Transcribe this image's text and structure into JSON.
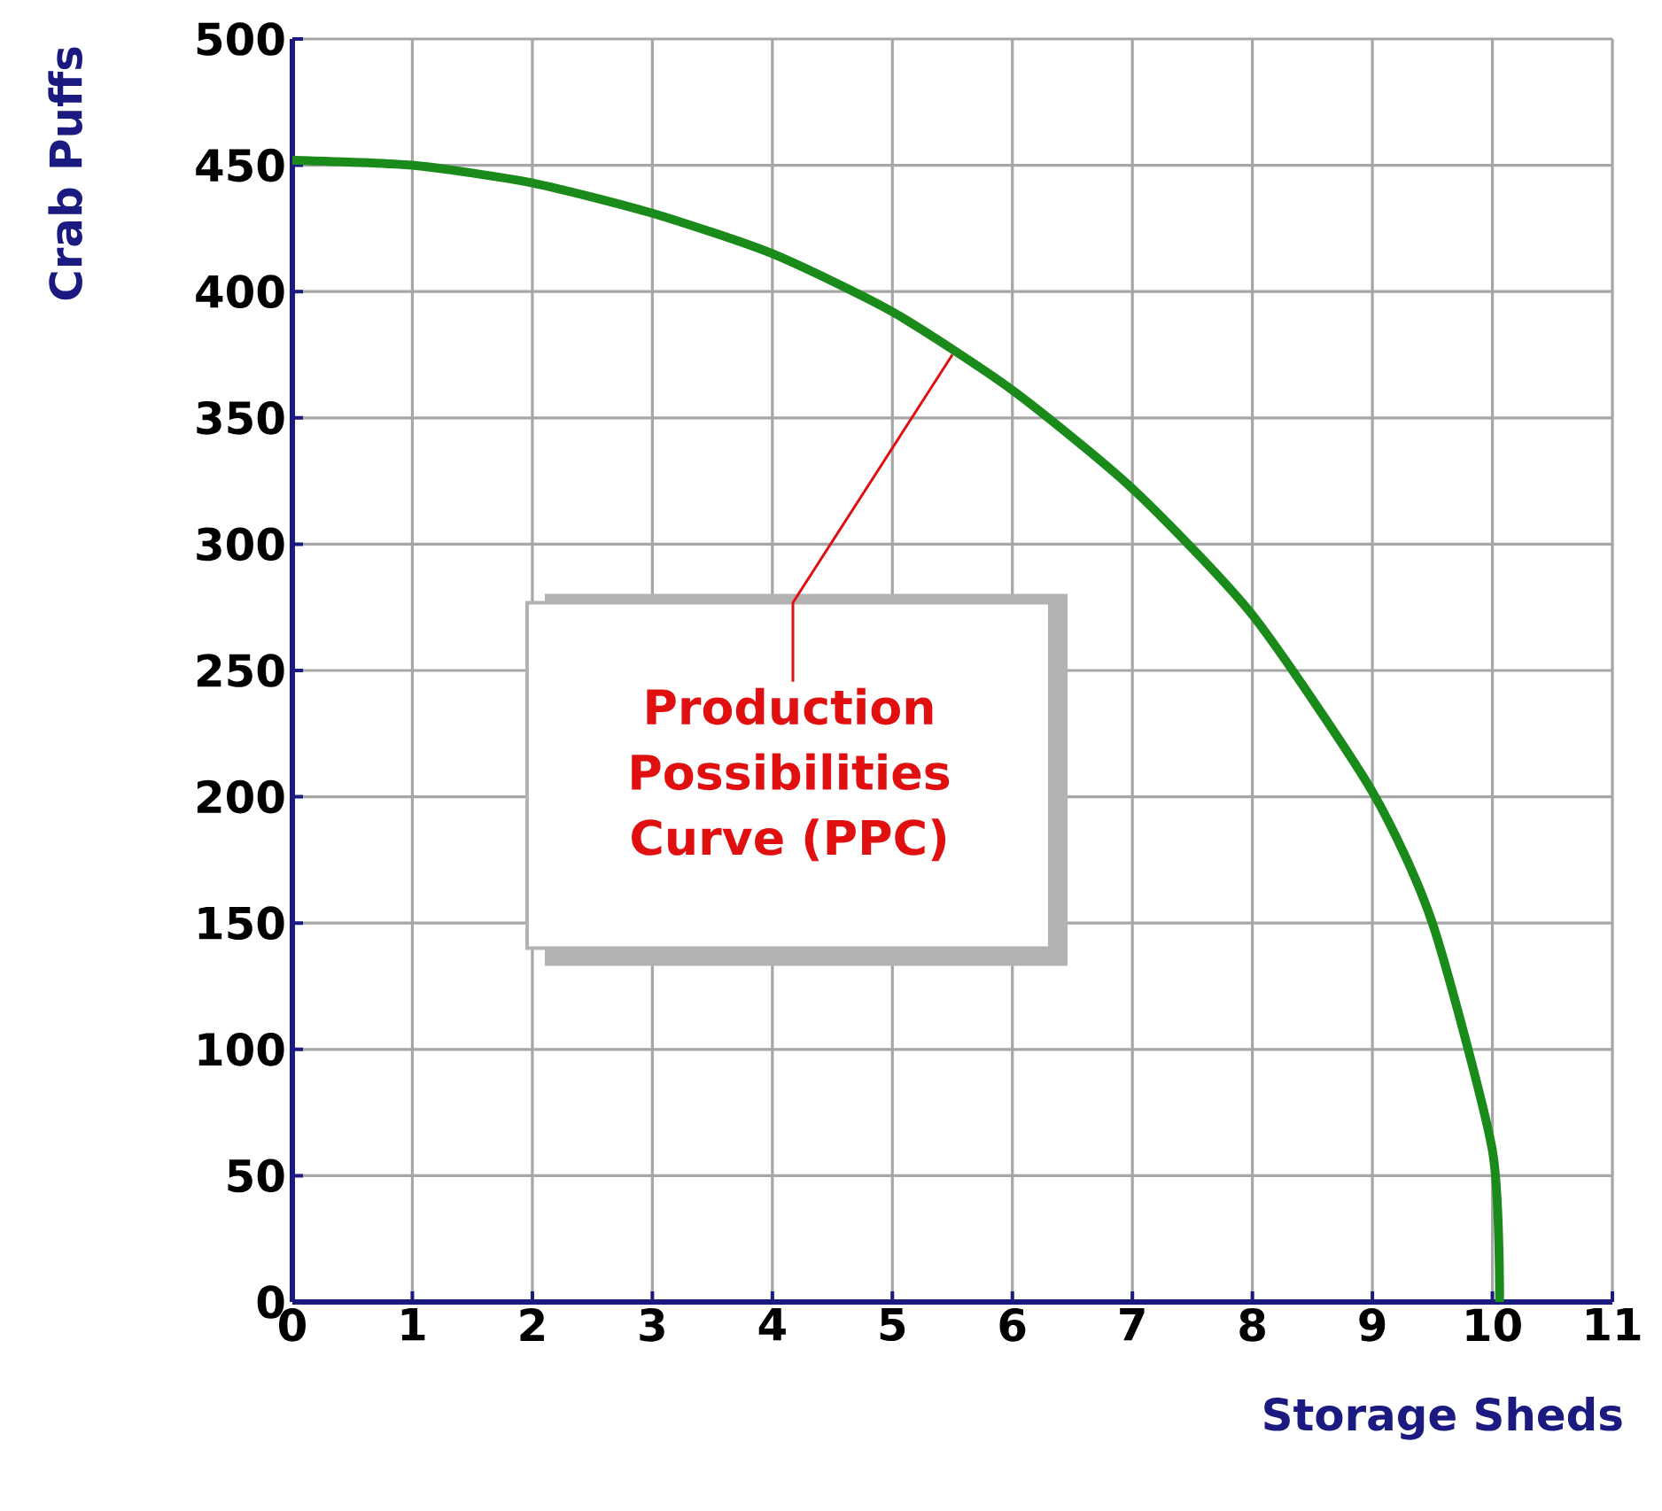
{
  "chart_data": {
    "type": "line",
    "xlabel": "Storage Sheds",
    "ylabel": "Crab Puffs",
    "x": [
      0,
      1,
      2,
      3,
      4,
      5,
      6,
      7,
      8,
      9,
      9.5,
      10,
      10.06
    ],
    "series": [
      {
        "color": "#1a8a1a",
        "values": [
          452,
          450,
          443,
          431,
          415,
          392,
          361,
          322,
          272,
          202,
          150,
          60,
          0
        ]
      }
    ],
    "xlim": [
      0,
      11
    ],
    "xticks": [
      0,
      1,
      2,
      3,
      4,
      5,
      6,
      7,
      8,
      9,
      10,
      11
    ],
    "ylim": [
      0,
      500
    ],
    "yticks": [
      0,
      50,
      100,
      150,
      200,
      250,
      300,
      350,
      400,
      450,
      500
    ],
    "grid": true,
    "marker": "none",
    "line_style": "solid",
    "annotations": [
      {
        "text": "Production Possibilities Curve (PPC)",
        "x": 5.5,
        "y": 375
      }
    ]
  }
}
